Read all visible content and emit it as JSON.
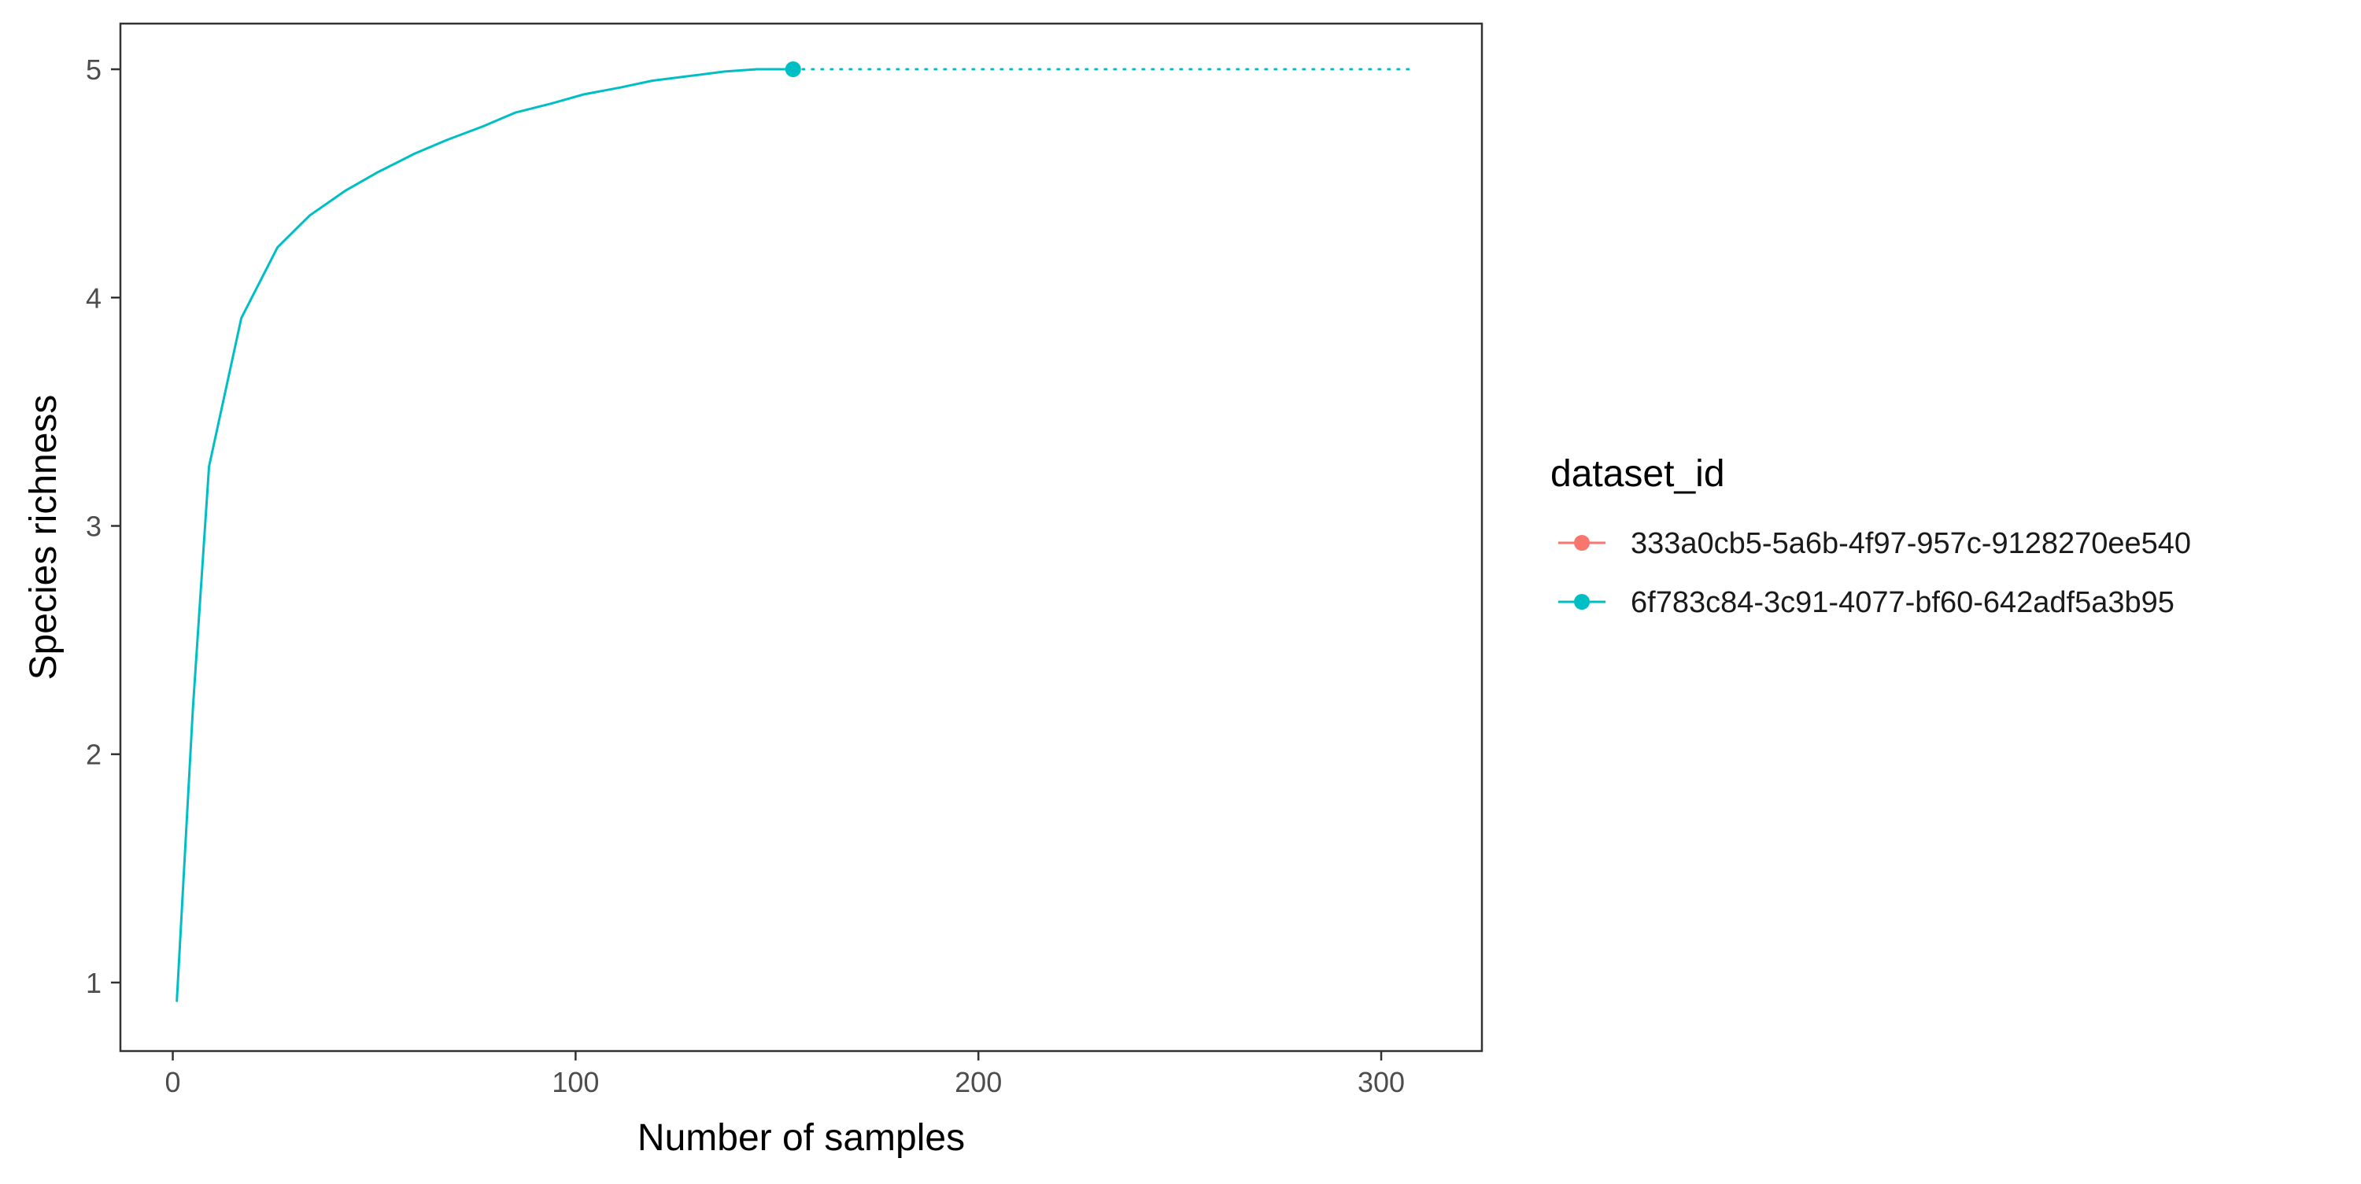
{
  "chart_data": {
    "type": "line",
    "xlabel": "Number of samples",
    "ylabel": "Species richness",
    "xlim": [
      -13,
      325
    ],
    "ylim": [
      0.7,
      5.2
    ],
    "x_ticks": [
      0,
      100,
      200,
      300
    ],
    "y_ticks": [
      1,
      2,
      3,
      4,
      5
    ],
    "grid": false,
    "legend": {
      "title": "dataset_id",
      "position": "right",
      "entries": [
        {
          "label": "333a0cb5-5a6b-4f97-957c-9128270ee540",
          "color": "#F8766D"
        },
        {
          "label": "6f783c84-3c91-4077-bf60-642adf5a3b95",
          "color": "#00BFC4"
        }
      ]
    },
    "series": [
      {
        "color": "#00BFC4",
        "style": "solid",
        "x": [
          1,
          5,
          9,
          17,
          26,
          34,
          43,
          51,
          60,
          68,
          77,
          85,
          94,
          102,
          111,
          119,
          128,
          137,
          145,
          154
        ],
        "y": [
          0.92,
          2.2,
          3.26,
          3.91,
          4.22,
          4.36,
          4.47,
          4.55,
          4.63,
          4.69,
          4.75,
          4.81,
          4.85,
          4.89,
          4.92,
          4.95,
          4.97,
          4.99,
          5.0,
          5.0
        ]
      },
      {
        "color": "#00BFC4",
        "style": "dotted",
        "x": [
          154,
          308
        ],
        "y": [
          5.0,
          5.0
        ]
      }
    ],
    "points": [
      {
        "x": 154,
        "y": 5.0,
        "color": "#00BFC4"
      }
    ]
  }
}
